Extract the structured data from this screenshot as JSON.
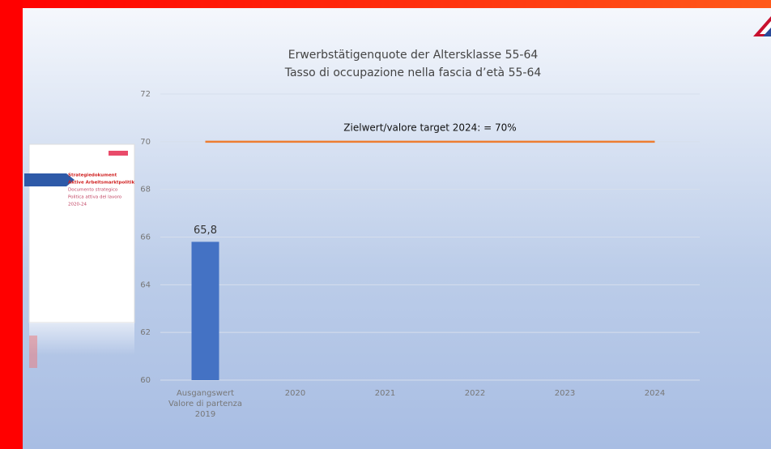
{
  "chart_data": {
    "type": "bar",
    "title": "Erwerbstätigenquote der Altersklasse 55-64",
    "subtitle": "Tasso di occupazione nella fascia d’età 55-64",
    "categories": [
      [
        "Ausgangswert",
        "Valore di partenza",
        "2019"
      ],
      [
        "2020"
      ],
      [
        "2021"
      ],
      [
        "2022"
      ],
      [
        "2023"
      ],
      [
        "2024"
      ]
    ],
    "values": [
      65.8,
      null,
      null,
      null,
      null,
      null
    ],
    "value_labels": [
      "65,8",
      null,
      null,
      null,
      null,
      null
    ],
    "color": "#4472c4",
    "ylim": [
      60,
      72
    ],
    "yticks": [
      60,
      62,
      64,
      66,
      68,
      70,
      72
    ],
    "grid": true,
    "target": {
      "value": 70,
      "label": "Zielwert/valore target 2024:  = 70%",
      "color": "#ed7d31"
    }
  },
  "cover": {
    "lines": [
      "Strategiedokument",
      "Aktive Arbeitsmarktpolitik",
      "Documento strategico",
      "Politica attiva del lavoro",
      "2020-24"
    ]
  }
}
